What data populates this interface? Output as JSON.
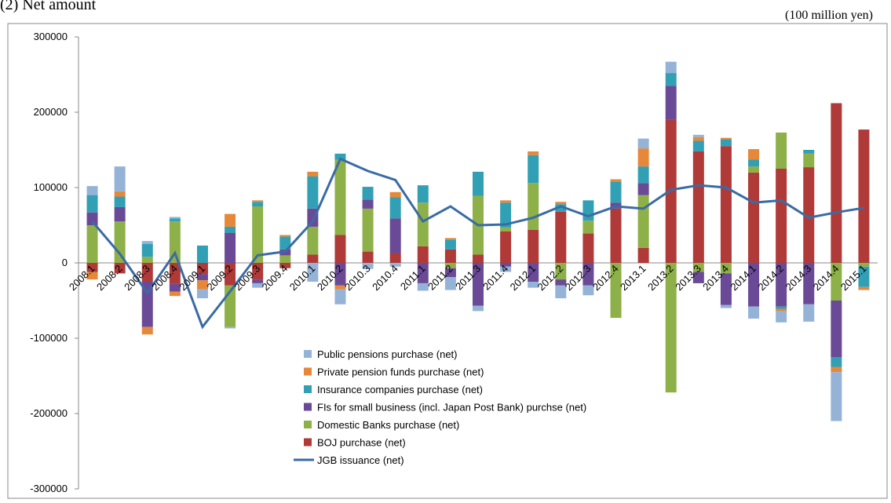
{
  "chart_data": {
    "type": "bar",
    "title": "(2)  Net amount",
    "unit_label": "(100 million yen)",
    "categories": [
      "2008.1",
      "2008.2",
      "2008.3",
      "2008.4",
      "2009.1",
      "2009.2",
      "2009.3",
      "2009.4",
      "2010.1",
      "2010.2",
      "2010.3",
      "2010.4",
      "2011.1",
      "2011.2",
      "2011.3",
      "2011.4",
      "2012.1",
      "2012.2",
      "2012.3",
      "2012.4",
      "2013.1",
      "2013.2",
      "2013.3",
      "2013.4",
      "2014.1",
      "2014.2",
      "2014.3",
      "2014.4",
      "2015.1"
    ],
    "stacked": true,
    "series": [
      {
        "name": "BOJ purchase (net)",
        "color": "#b03a38",
        "values": [
          -12000,
          -14000,
          -25000,
          -28000,
          -15000,
          -30000,
          -22000,
          -7000,
          11000,
          37000,
          15000,
          13000,
          22000,
          18000,
          11000,
          42000,
          44000,
          68000,
          39000,
          72000,
          20000,
          190000,
          148000,
          155000,
          120000,
          125000,
          127000,
          212000,
          177000
        ]
      },
      {
        "name": "Domestic Banks purchase (net)",
        "color": "#8eb048",
        "values": [
          50000,
          55000,
          8000,
          55000,
          0,
          -55000,
          75000,
          10000,
          37000,
          100000,
          57000,
          0,
          58000,
          -7000,
          78000,
          5000,
          62000,
          -22000,
          17000,
          -73000,
          70000,
          -172000,
          -12000,
          -14000,
          8000,
          48000,
          18000,
          -50000,
          -5000
        ]
      },
      {
        "name": "FIs for small business (incl. Japan Post Bank) purchse (net)",
        "color": "#6a4a97",
        "values": [
          17000,
          19000,
          -60000,
          -10000,
          -8000,
          40000,
          -5000,
          8000,
          24000,
          -30000,
          12000,
          46000,
          -27000,
          -12000,
          -57000,
          -5000,
          -25000,
          -8000,
          -30000,
          8000,
          16000,
          45000,
          -15000,
          -42000,
          -58000,
          -58000,
          -55000,
          -75000,
          0
        ]
      },
      {
        "name": "Insurance companies purchase (net)",
        "color": "#31a0b5",
        "values": [
          23000,
          14000,
          17000,
          4000,
          23000,
          8000,
          6000,
          17000,
          43000,
          8000,
          17000,
          28000,
          23000,
          13000,
          32000,
          33000,
          37000,
          10000,
          27000,
          28000,
          22000,
          17000,
          14000,
          9000,
          9000,
          -3000,
          5000,
          -13000,
          -27000
        ]
      },
      {
        "name": "Private pension funds purchase (net)",
        "color": "#e6883a",
        "values": [
          -10000,
          7000,
          -10000,
          -6000,
          -12000,
          17000,
          2000,
          2000,
          6000,
          -5000,
          0,
          7000,
          0,
          2000,
          0,
          3000,
          5000,
          3000,
          0,
          3000,
          24000,
          0,
          5000,
          2000,
          14000,
          -3000,
          0,
          -7000,
          -4000
        ]
      },
      {
        "name": "Public pensions purchase (net)",
        "color": "#95b3d7",
        "values": [
          12000,
          33000,
          4000,
          2000,
          -12000,
          -2000,
          -6000,
          0,
          -25000,
          -20000,
          -8000,
          -5000,
          -10000,
          -17000,
          -7000,
          -7000,
          -8000,
          -17000,
          -13000,
          0,
          13000,
          15000,
          3000,
          -4000,
          -16000,
          -15000,
          -23000,
          -65000,
          0
        ]
      },
      {
        "name": "JGB issuance (net)",
        "color": "#3a6ba5",
        "type": "line",
        "values": [
          55000,
          12000,
          -40000,
          13000,
          -85000,
          -38000,
          10000,
          15000,
          55000,
          138000,
          122000,
          110000,
          55000,
          75000,
          50000,
          51000,
          60000,
          75000,
          62000,
          75000,
          72000,
          97000,
          103000,
          100000,
          80000,
          83000,
          60000,
          67000,
          73000
        ]
      }
    ],
    "ylim": [
      -300000,
      300000
    ],
    "yticks": [
      -300000,
      -200000,
      -100000,
      0,
      100000,
      200000,
      300000
    ]
  }
}
